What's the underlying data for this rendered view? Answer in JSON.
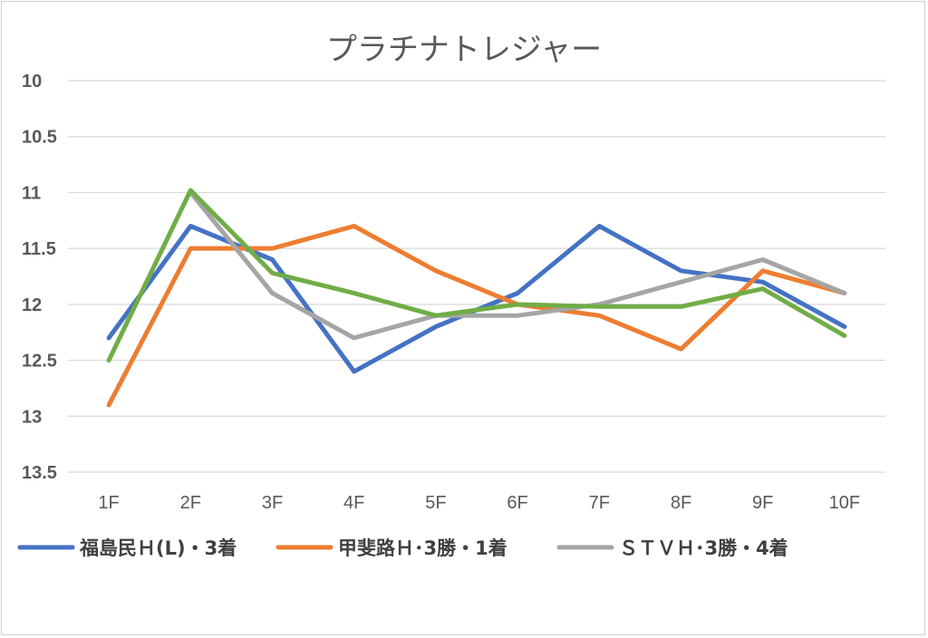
{
  "chart_data": {
    "type": "line",
    "title": "プラチナトレジャー",
    "categories": [
      "1F",
      "2F",
      "3F",
      "4F",
      "5F",
      "6F",
      "7F",
      "8F",
      "9F",
      "10F"
    ],
    "ylim": [
      10,
      13.5
    ],
    "y_axis_inverted": true,
    "y_ticks": [
      "10",
      "10.5",
      "11",
      "11.5",
      "12",
      "12.5",
      "13",
      "13.5"
    ],
    "grid": true,
    "legend_position": "bottom",
    "series": [
      {
        "name": "福島民Ｈ(L)・3着",
        "color": "#4472c4",
        "values": [
          12.3,
          11.3,
          11.6,
          12.6,
          12.2,
          11.9,
          11.3,
          11.7,
          11.8,
          12.2
        ]
      },
      {
        "name": "甲斐路Ｈ･3勝・1着",
        "color": "#ed7d31",
        "values": [
          12.9,
          11.5,
          11.5,
          11.3,
          11.7,
          12.0,
          12.1,
          12.4,
          11.7,
          11.9
        ]
      },
      {
        "name": "ＳＴＶＨ･3勝・4着",
        "color": "#a5a5a5",
        "values": [
          null,
          11.0,
          11.9,
          12.3,
          12.1,
          12.1,
          12.0,
          11.8,
          11.6,
          11.9
        ]
      },
      {
        "name": "",
        "color": "#70ad47",
        "values": [
          12.5,
          10.98,
          11.72,
          11.9,
          12.1,
          12.0,
          12.02,
          12.02,
          11.86,
          12.28
        ]
      }
    ]
  }
}
